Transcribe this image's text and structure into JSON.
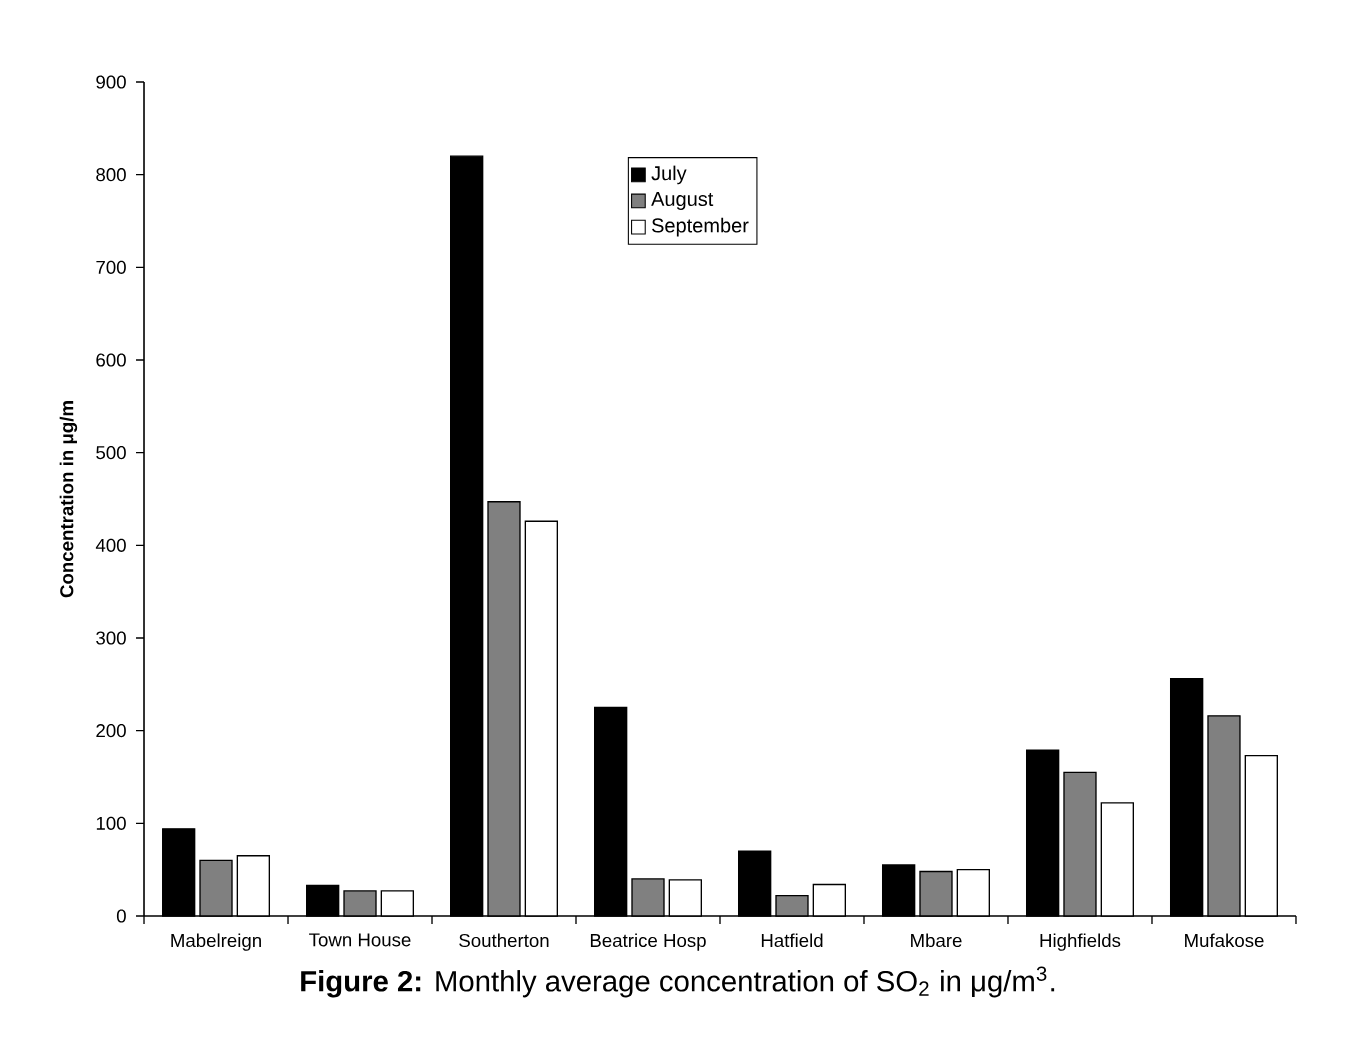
{
  "chart_data": {
    "type": "bar",
    "title": "**Figure 2:** Monthly average concentration of SO$_{2}$ in μg/m$^{3}$.",
    "ylabel": "Concentration in μg/m",
    "categories": [
      "Mabelreign",
      "Town House",
      "Southerton",
      "Beatrice Hosp",
      "Hatfield",
      "Mbare",
      "Highfields",
      "Mufakose"
    ],
    "series": [
      {
        "name": "July",
        "color": "#000000",
        "values": [
          94,
          33,
          820,
          225,
          70,
          55,
          179,
          256
        ]
      },
      {
        "name": "August",
        "color": "#808080",
        "values": [
          60,
          27,
          447,
          40,
          22,
          48,
          155,
          216
        ]
      },
      {
        "name": "September",
        "color": "#ffffff",
        "values": [
          65,
          27,
          426,
          39,
          34,
          50,
          122,
          173
        ]
      }
    ],
    "ylim": [
      0,
      900
    ],
    "yticks": [
      0,
      100,
      200,
      300,
      400,
      500,
      600,
      700,
      800,
      900
    ],
    "legend": "top",
    "grid": false
  }
}
